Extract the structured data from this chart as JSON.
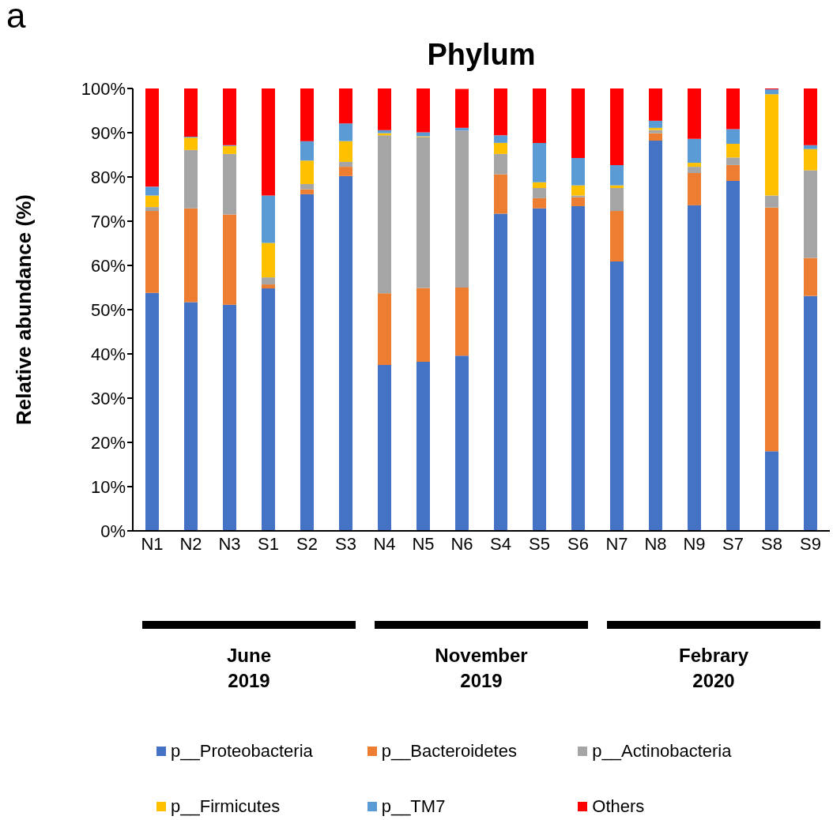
{
  "chart_data": {
    "type": "bar",
    "stacked": true,
    "title": "Phylum",
    "ylabel": "Relative abundance (%)",
    "categories": [
      "N1",
      "N2",
      "N3",
      "S1",
      "S2",
      "S3",
      "N4",
      "N5",
      "N6",
      "S4",
      "S5",
      "S6",
      "N7",
      "N8",
      "N9",
      "S7",
      "S8",
      "S9"
    ],
    "series": [
      {
        "name": "p__Proteobacteria",
        "color": "#4472c4",
        "values": [
          53.8,
          51.7,
          51.1,
          54.8,
          76.1,
          80.2,
          37.5,
          38.2,
          39.6,
          71.7,
          72.9,
          73.4,
          60.9,
          88.2,
          73.6,
          79.1,
          18.0,
          53.1
        ]
      },
      {
        "name": "p__Bacteroidetes",
        "color": "#ed7d31",
        "values": [
          18.5,
          21.2,
          20.4,
          0.9,
          1.1,
          2.1,
          16.2,
          16.7,
          15.4,
          8.9,
          2.3,
          2.0,
          11.4,
          1.7,
          7.3,
          3.6,
          55.1,
          8.6
        ]
      },
      {
        "name": "p__Actinobacteria",
        "color": "#a5a5a5",
        "values": [
          0.9,
          13.2,
          13.7,
          1.6,
          1.2,
          1.1,
          35.7,
          34.1,
          35.5,
          4.6,
          2.3,
          0.4,
          5.2,
          0.7,
          1.4,
          1.7,
          2.7,
          19.8
        ]
      },
      {
        "name": "p__Firmicutes",
        "color": "#ffc000",
        "values": [
          2.6,
          2.8,
          1.8,
          7.8,
          5.3,
          4.7,
          0.5,
          0.2,
          null,
          2.5,
          1.3,
          2.3,
          0.6,
          0.5,
          0.9,
          3.1,
          22.9,
          4.8
        ]
      },
      {
        "name": "p__TM7",
        "color": "#5b9bd5",
        "values": [
          2.0,
          0.2,
          0.2,
          10.7,
          4.4,
          4.0,
          0.7,
          0.9,
          0.6,
          1.7,
          8.9,
          6.2,
          4.6,
          1.6,
          5.4,
          3.3,
          1.1,
          0.9
        ]
      },
      {
        "name": "Others",
        "color": "#ff0000",
        "values": [
          22.2,
          10.9,
          12.8,
          24.2,
          11.9,
          7.9,
          9.4,
          9.9,
          8.8,
          10.6,
          12.3,
          15.7,
          17.3,
          7.3,
          11.4,
          9.2,
          0.2,
          12.8
        ]
      }
    ],
    "ylim": [
      0,
      100
    ],
    "yticks": [
      {
        "value": 0,
        "label": "0%"
      },
      {
        "value": 10,
        "label": "10%"
      },
      {
        "value": 20,
        "label": "20%"
      },
      {
        "value": 30,
        "label": "30%"
      },
      {
        "value": 40,
        "label": "40%"
      },
      {
        "value": 50,
        "label": "50%"
      },
      {
        "value": 60,
        "label": "60%"
      },
      {
        "value": 70,
        "label": "70%"
      },
      {
        "value": 80,
        "label": "80%"
      },
      {
        "value": 90,
        "label": "90%"
      },
      {
        "value": 100,
        "label": "100%"
      }
    ],
    "grid": false,
    "legend": "bottom",
    "annotations": [
      "a",
      "June\n2019",
      "November\n2019",
      "Febrary\n2020"
    ]
  }
}
